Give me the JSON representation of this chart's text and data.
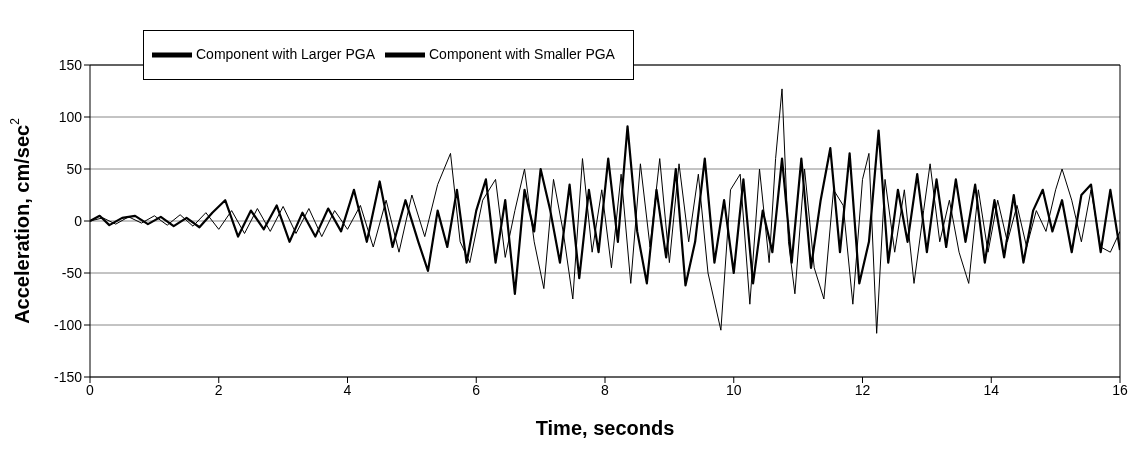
{
  "chart_data": {
    "type": "line",
    "xlabel": "Time, seconds",
    "ylabel": "Acceleration, cm/sec$^{2}$",
    "xlim": [
      0,
      16
    ],
    "xticks": [
      0,
      2,
      4,
      6,
      8,
      10,
      12,
      14,
      16
    ],
    "ylim": [
      -150,
      150
    ],
    "yticks": [
      -150,
      -100,
      -50,
      0,
      50,
      100,
      150
    ],
    "grid": "y",
    "legend": "top left",
    "marker": "none",
    "line_style": "solid",
    "series": [
      {
        "name": "Component with Larger PGA",
        "color": "#000000",
        "x": [
          0,
          0.2,
          0.4,
          0.6,
          0.8,
          1.0,
          1.2,
          1.4,
          1.6,
          1.8,
          2.0,
          2.2,
          2.4,
          2.6,
          2.8,
          3.0,
          3.2,
          3.4,
          3.6,
          3.8,
          4.0,
          4.2,
          4.4,
          4.6,
          4.8,
          5.0,
          5.2,
          5.4,
          5.6,
          5.75,
          5.9,
          6.1,
          6.3,
          6.45,
          6.6,
          6.75,
          6.9,
          7.05,
          7.2,
          7.35,
          7.5,
          7.65,
          7.8,
          7.95,
          8.1,
          8.25,
          8.4,
          8.55,
          8.7,
          8.85,
          9.0,
          9.15,
          9.3,
          9.45,
          9.6,
          9.8,
          9.95,
          10.1,
          10.25,
          10.4,
          10.55,
          10.65,
          10.75,
          10.85,
          10.95,
          11.1,
          11.25,
          11.4,
          11.55,
          11.7,
          11.85,
          12.0,
          12.1,
          12.22,
          12.35,
          12.5,
          12.65,
          12.8,
          12.95,
          13.05,
          13.2,
          13.35,
          13.5,
          13.65,
          13.8,
          13.95,
          14.1,
          14.25,
          14.4,
          14.55,
          14.7,
          14.85,
          15.0,
          15.1,
          15.25,
          15.4,
          15.55,
          15.7,
          15.85,
          16.0
        ],
        "values": [
          0,
          3,
          -3,
          4,
          -2,
          5,
          -4,
          6,
          -5,
          8,
          -8,
          10,
          -12,
          12,
          -10,
          14,
          -12,
          12,
          -15,
          10,
          -8,
          15,
          -25,
          20,
          -30,
          25,
          -15,
          35,
          65,
          -20,
          -40,
          20,
          40,
          -35,
          10,
          50,
          -20,
          -65,
          40,
          -10,
          -75,
          60,
          -30,
          30,
          -45,
          45,
          -60,
          55,
          -25,
          60,
          -40,
          55,
          -20,
          45,
          -50,
          -105,
          30,
          45,
          -80,
          50,
          -40,
          60,
          127,
          -20,
          -70,
          50,
          -45,
          -75,
          30,
          15,
          -80,
          40,
          65,
          -108,
          40,
          -30,
          30,
          -60,
          10,
          55,
          -20,
          20,
          -30,
          -60,
          30,
          -30,
          20,
          -20,
          15,
          -25,
          10,
          -10,
          30,
          50,
          20,
          -20,
          30,
          -25,
          -30,
          -10
        ]
      },
      {
        "name": "Component with Smaller PGA",
        "color": "#000000",
        "x": [
          0,
          0.15,
          0.3,
          0.5,
          0.7,
          0.9,
          1.1,
          1.3,
          1.5,
          1.7,
          1.9,
          2.1,
          2.3,
          2.5,
          2.7,
          2.9,
          3.1,
          3.3,
          3.5,
          3.7,
          3.9,
          4.1,
          4.3,
          4.5,
          4.7,
          4.9,
          5.1,
          5.25,
          5.4,
          5.55,
          5.7,
          5.85,
          6.0,
          6.15,
          6.3,
          6.45,
          6.6,
          6.75,
          6.9,
          7.0,
          7.15,
          7.3,
          7.45,
          7.6,
          7.75,
          7.9,
          8.05,
          8.2,
          8.35,
          8.5,
          8.65,
          8.8,
          8.95,
          9.1,
          9.25,
          9.4,
          9.55,
          9.7,
          9.85,
          10.0,
          10.15,
          10.3,
          10.45,
          10.6,
          10.75,
          10.9,
          11.05,
          11.2,
          11.35,
          11.5,
          11.65,
          11.8,
          11.95,
          12.1,
          12.25,
          12.4,
          12.55,
          12.7,
          12.85,
          13.0,
          13.15,
          13.3,
          13.45,
          13.6,
          13.75,
          13.9,
          14.05,
          14.2,
          14.35,
          14.5,
          14.65,
          14.8,
          14.95,
          15.1,
          15.25,
          15.4,
          15.55,
          15.7,
          15.85,
          16.0
        ],
        "values": [
          0,
          5,
          -4,
          3,
          5,
          -3,
          4,
          -5,
          3,
          -6,
          8,
          20,
          -15,
          10,
          -8,
          15,
          -20,
          8,
          -15,
          12,
          -10,
          30,
          -20,
          38,
          -25,
          20,
          -20,
          -48,
          10,
          -25,
          30,
          -40,
          10,
          40,
          -40,
          20,
          -70,
          30,
          -10,
          50,
          10,
          -40,
          35,
          -55,
          30,
          -30,
          60,
          -20,
          91,
          -10,
          -60,
          30,
          -35,
          50,
          -62,
          -20,
          60,
          -40,
          20,
          -50,
          40,
          -60,
          10,
          -30,
          60,
          -40,
          60,
          -45,
          20,
          70,
          -30,
          65,
          -60,
          -20,
          87,
          -40,
          30,
          -20,
          45,
          -30,
          40,
          -25,
          40,
          -20,
          35,
          -40,
          20,
          -35,
          25,
          -40,
          10,
          30,
          -10,
          20,
          -30,
          25,
          35,
          -30,
          30,
          -28
        ]
      }
    ]
  }
}
